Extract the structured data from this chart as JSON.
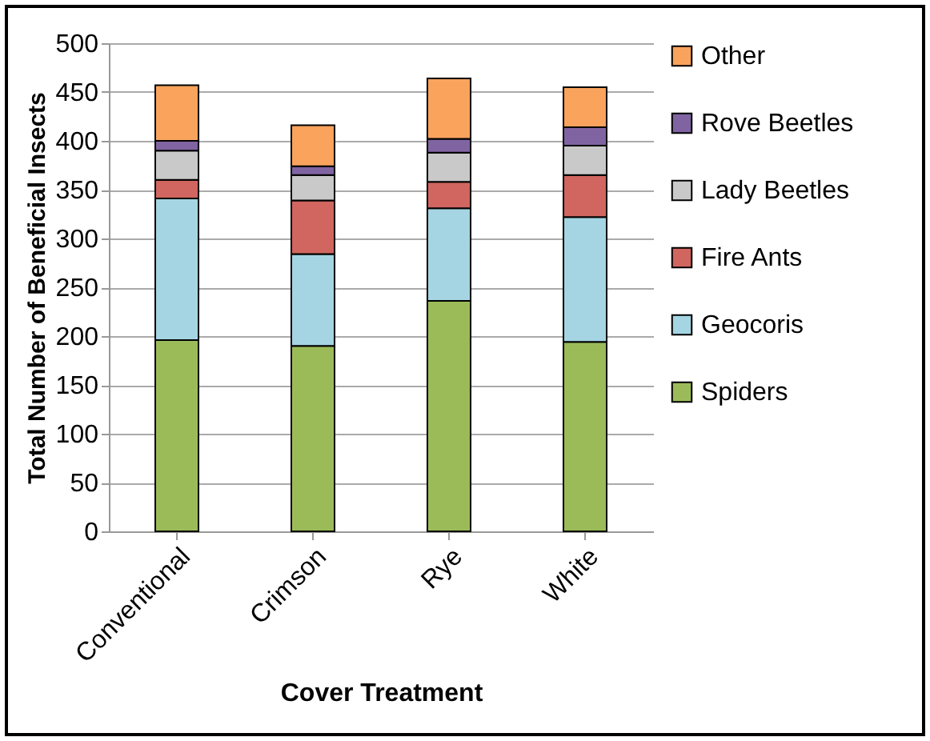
{
  "chart_data": {
    "type": "bar",
    "stacked": true,
    "xlabel": "Cover Treatment",
    "ylabel": "Total Number of Beneficial Insects",
    "categories": [
      "Conventional",
      "Crimson",
      "Rye",
      "White"
    ],
    "series": [
      {
        "name": "Spiders",
        "color": "#9bbb59",
        "values": [
          196,
          190,
          236,
          194
        ]
      },
      {
        "name": "Geocoris",
        "color": "#a5d5e2",
        "values": [
          145,
          94,
          95,
          128
        ]
      },
      {
        "name": "Fire Ants",
        "color": "#d0665f",
        "values": [
          19,
          55,
          27,
          43
        ]
      },
      {
        "name": "Lady Beetles",
        "color": "#c9c9c9",
        "values": [
          30,
          26,
          30,
          30
        ]
      },
      {
        "name": "Rove Beetles",
        "color": "#8064a2",
        "values": [
          10,
          9,
          14,
          19
        ]
      },
      {
        "name": "Other",
        "color": "#f9a35d",
        "values": [
          57,
          42,
          62,
          41
        ]
      }
    ],
    "ylim": [
      0,
      500
    ],
    "yticks": [
      0,
      50,
      100,
      150,
      200,
      250,
      300,
      350,
      400,
      450,
      500
    ],
    "grid": "y",
    "legend": "right"
  }
}
